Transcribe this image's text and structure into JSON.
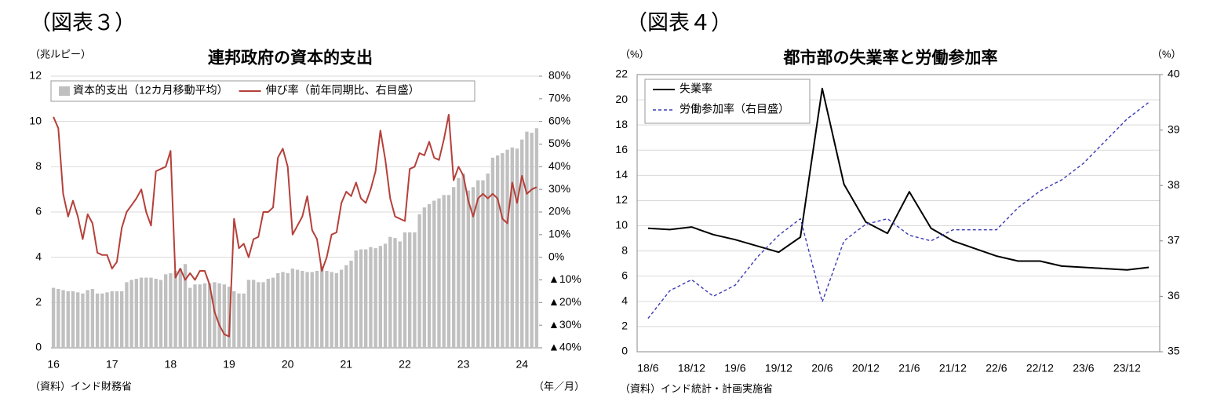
{
  "chart_data": [
    {
      "type": "bar",
      "header": "（図表３）",
      "title": "連邦政府の資本的支出",
      "y_label": "（兆ルピー）",
      "source": "（資料）インド財務省",
      "x_unit": "（年／月）",
      "categories": [
        "16",
        null,
        null,
        null,
        null,
        null,
        null,
        null,
        null,
        null,
        null,
        null,
        "17",
        null,
        null,
        null,
        null,
        null,
        null,
        null,
        null,
        null,
        null,
        null,
        "18",
        null,
        null,
        null,
        null,
        null,
        null,
        null,
        null,
        null,
        null,
        null,
        "19",
        null,
        null,
        null,
        null,
        null,
        null,
        null,
        null,
        null,
        null,
        null,
        "20",
        null,
        null,
        null,
        null,
        null,
        null,
        null,
        null,
        null,
        null,
        null,
        "21",
        null,
        null,
        null,
        null,
        null,
        null,
        null,
        null,
        null,
        null,
        null,
        "22",
        null,
        null,
        null,
        null,
        null,
        null,
        null,
        null,
        null,
        null,
        null,
        "23",
        null,
        null,
        null,
        null,
        null,
        null,
        null,
        null,
        null,
        null,
        null,
        "24",
        null,
        null,
        null
      ],
      "series": [
        {
          "name": "資本的支出（12カ月移動平均）",
          "color": "#c0c0c0",
          "values": [
            2.65,
            2.6,
            2.55,
            2.5,
            2.5,
            2.45,
            2.4,
            2.55,
            2.6,
            2.4,
            2.4,
            2.45,
            2.5,
            2.5,
            2.5,
            2.9,
            3.0,
            3.05,
            3.1,
            3.1,
            3.1,
            3.05,
            3.0,
            3.25,
            3.3,
            3.4,
            3.5,
            3.7,
            2.65,
            2.8,
            2.8,
            2.85,
            2.85,
            2.9,
            2.85,
            2.8,
            2.7,
            2.5,
            2.4,
            2.4,
            3.0,
            3.0,
            2.9,
            2.9,
            3.05,
            3.1,
            3.3,
            3.35,
            3.3,
            3.5,
            3.45,
            3.4,
            3.35,
            3.35,
            3.4,
            3.6,
            3.4,
            3.35,
            3.3,
            3.45,
            3.65,
            3.85,
            4.3,
            4.35,
            4.35,
            4.45,
            4.4,
            4.5,
            4.6,
            4.9,
            4.85,
            4.7,
            5.1,
            5.1,
            5.1,
            5.9,
            6.2,
            6.35,
            6.5,
            6.6,
            6.75,
            6.75,
            7.1,
            7.5,
            7.7,
            6.95,
            7.1,
            7.4,
            7.4,
            7.7,
            8.4,
            8.5,
            8.6,
            8.75,
            8.85,
            8.8,
            9.2,
            9.55,
            9.5,
            9.7
          ]
        },
        {
          "name": "伸び率（前年同期比、右目盛）",
          "color": "#b5403a",
          "axis": "y2",
          "values": [
            62,
            57,
            28,
            18,
            25,
            18,
            8,
            19,
            15,
            2,
            1,
            1,
            -5,
            -2,
            13,
            20,
            23,
            26,
            30,
            20,
            14,
            38,
            39,
            40,
            47,
            -9,
            -5,
            -10,
            -7,
            -10,
            -6,
            -6,
            -12,
            -24,
            -30,
            -34,
            -35,
            17,
            4,
            6,
            0,
            8,
            9,
            20,
            20,
            22,
            44,
            48,
            40,
            10,
            14,
            18,
            27,
            12,
            8,
            -6,
            0,
            10,
            11,
            24,
            29,
            27,
            33,
            26,
            24,
            30,
            38,
            56,
            43,
            26,
            18,
            17,
            16,
            39,
            40,
            46,
            45,
            51,
            44,
            43,
            52,
            63,
            34,
            40,
            36,
            25,
            18,
            26,
            28,
            26,
            28,
            26,
            17,
            15,
            33,
            24,
            36,
            28,
            30,
            31
          ]
        }
      ],
      "ylim": [
        0,
        12
      ],
      "yticks": [
        0,
        2,
        4,
        6,
        8,
        10,
        12
      ],
      "y2lim": [
        -40,
        80
      ],
      "y2ticks": [
        {
          "value": 80,
          "label": "80%"
        },
        {
          "value": 70,
          "label": "70%"
        },
        {
          "value": 60,
          "label": "60%"
        },
        {
          "value": 50,
          "label": "50%"
        },
        {
          "value": 40,
          "label": "40%"
        },
        {
          "value": 30,
          "label": "30%"
        },
        {
          "value": 20,
          "label": "20%"
        },
        {
          "value": 10,
          "label": "10%"
        },
        {
          "value": 0,
          "label": "0%"
        },
        {
          "value": -10,
          "label": "▲10%"
        },
        {
          "value": -20,
          "label": "▲20%"
        },
        {
          "value": -30,
          "label": "▲30%"
        },
        {
          "value": -40,
          "label": "▲40%"
        }
      ],
      "grid": true,
      "legend": "top-left"
    },
    {
      "type": "line",
      "header": "（図表４）",
      "title": "都市部の失業率と労働参加率",
      "y_label": "（%）",
      "y2_label": "（%）",
      "source": "（資料）インド統計・計画実施省",
      "categories": [
        "18/6",
        null,
        "18/12",
        null,
        "19/6",
        null,
        "19/12",
        null,
        "20/6",
        null,
        "20/12",
        null,
        "21/6",
        null,
        "21/12",
        null,
        "22/6",
        null,
        "22/12",
        null,
        "23/6",
        null,
        "23/12",
        null
      ],
      "series": [
        {
          "name": "失業率",
          "color": "#000000",
          "values": [
            9.8,
            9.7,
            9.9,
            9.3,
            8.9,
            8.4,
            7.9,
            9.1,
            20.9,
            13.3,
            10.3,
            9.4,
            12.7,
            9.8,
            8.8,
            8.2,
            7.6,
            7.2,
            7.2,
            6.8,
            6.7,
            6.6,
            6.5,
            6.7
          ]
        },
        {
          "name": "労働参加率（右目盛）",
          "color": "#3a3ab5",
          "axis": "y2",
          "line_style": "dashed",
          "values": [
            35.6,
            36.1,
            36.3,
            36.0,
            36.2,
            36.7,
            37.1,
            37.4,
            35.9,
            37.0,
            37.3,
            37.4,
            37.1,
            37.0,
            37.2,
            37.2,
            37.2,
            37.6,
            37.9,
            38.1,
            38.4,
            38.8,
            39.2,
            39.5
          ]
        }
      ],
      "ylim": [
        0,
        22
      ],
      "yticks": [
        0,
        2,
        4,
        6,
        8,
        10,
        12,
        14,
        16,
        18,
        20,
        22
      ],
      "y2lim": [
        35,
        40
      ],
      "y2ticks": [
        35,
        36,
        37,
        38,
        39,
        40
      ],
      "grid": true,
      "legend": "top-left"
    }
  ]
}
